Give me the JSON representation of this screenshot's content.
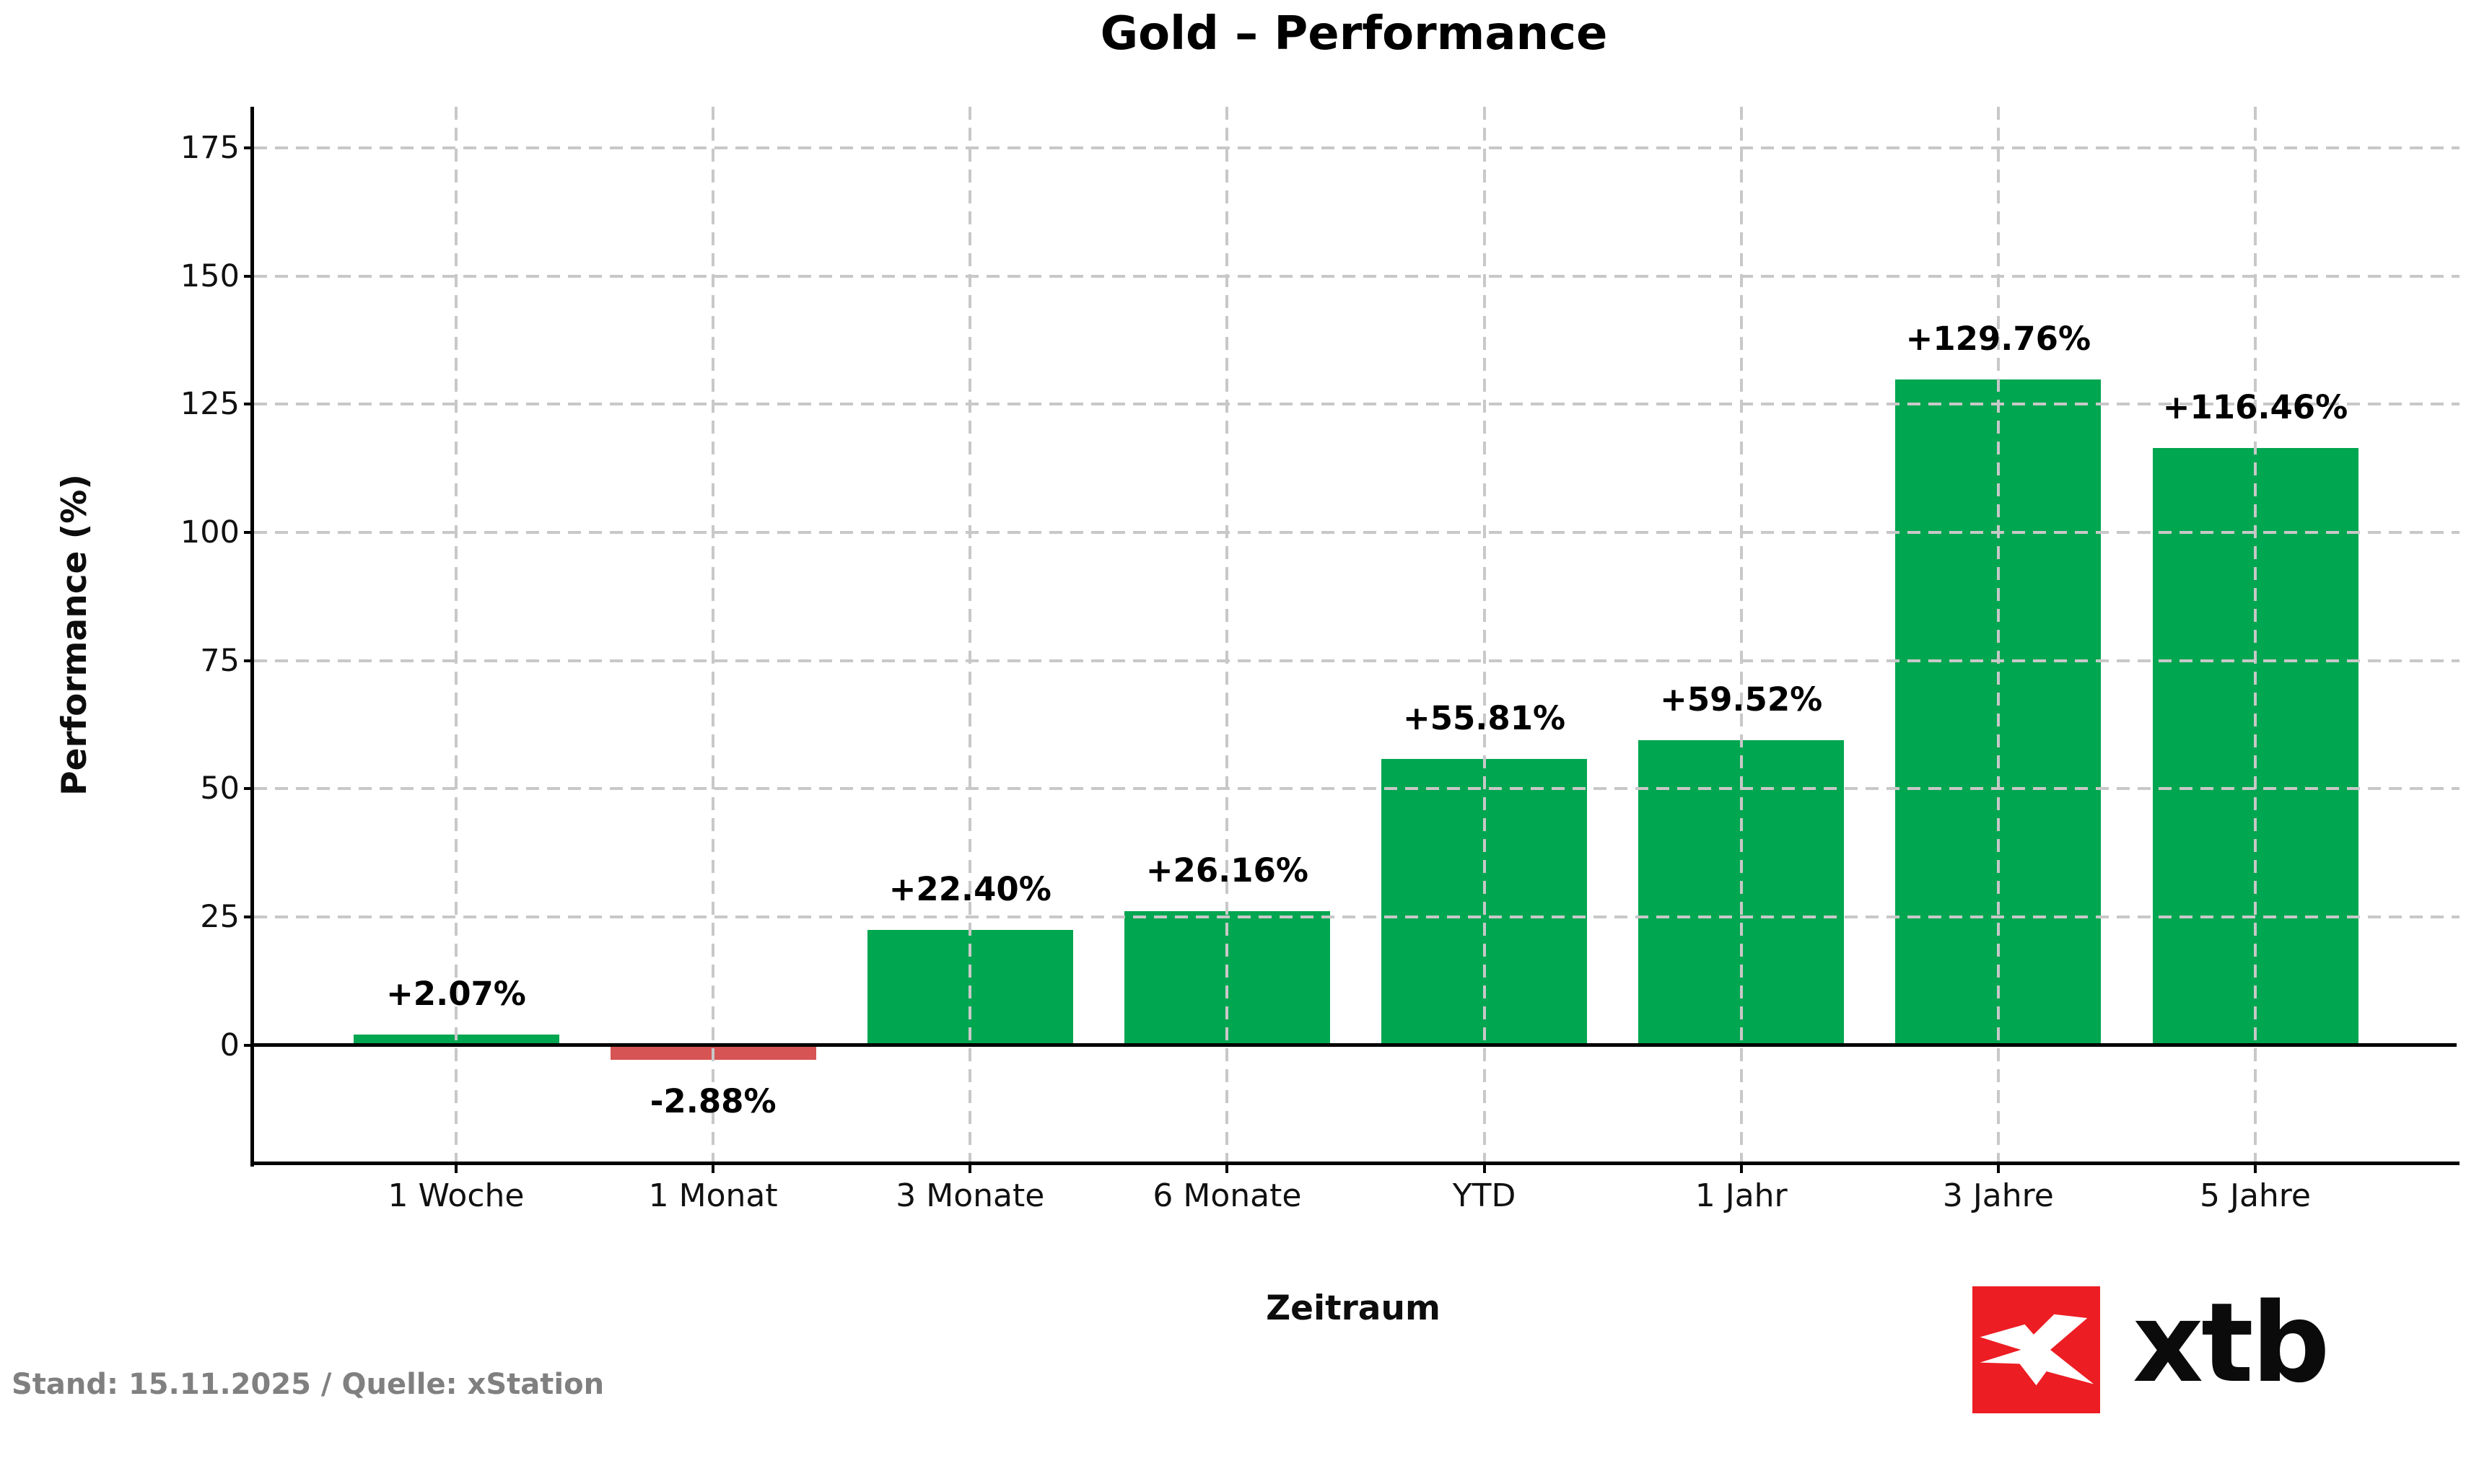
{
  "title": "Gold – Performance",
  "footer": {
    "text": "Stand: 15.11.2025 / Quelle: xStation"
  },
  "logo": {
    "text": "xtb",
    "icon": "xtb-x-mark",
    "box_color": "#ec1d23",
    "text_color": "#0b0b0b"
  },
  "chart_data": {
    "type": "bar",
    "title": "Gold – Performance",
    "xlabel": "Zeitraum",
    "ylabel": "Performance (%)",
    "categories": [
      "1 Woche",
      "1 Monat",
      "3 Monate",
      "6 Monate",
      "YTD",
      "1 Jahr",
      "3 Jahre",
      "5 Jahre"
    ],
    "values": [
      2.07,
      -2.88,
      22.4,
      26.16,
      55.81,
      59.52,
      129.76,
      116.46
    ],
    "bar_labels": [
      "+2.07%",
      "-2.88%",
      "+22.40%",
      "+26.16%",
      "+55.81%",
      "+59.52%",
      "+129.76%",
      "+116.46%"
    ],
    "yticks": [
      0,
      25,
      50,
      75,
      100,
      125,
      150,
      175
    ],
    "ytick_labels": [
      "0",
      "25",
      "50",
      "75",
      "100",
      "125",
      "150",
      "175"
    ],
    "ylim": [
      -23,
      183
    ],
    "grid": "dashed, both axes, drawn over bars",
    "legend": "none",
    "colors": {
      "positive_bar": "#00a650",
      "negative_bar": "#d65454",
      "gridline": "#c8c8c8",
      "axis": "#000000",
      "zero_line": "#000000"
    }
  }
}
